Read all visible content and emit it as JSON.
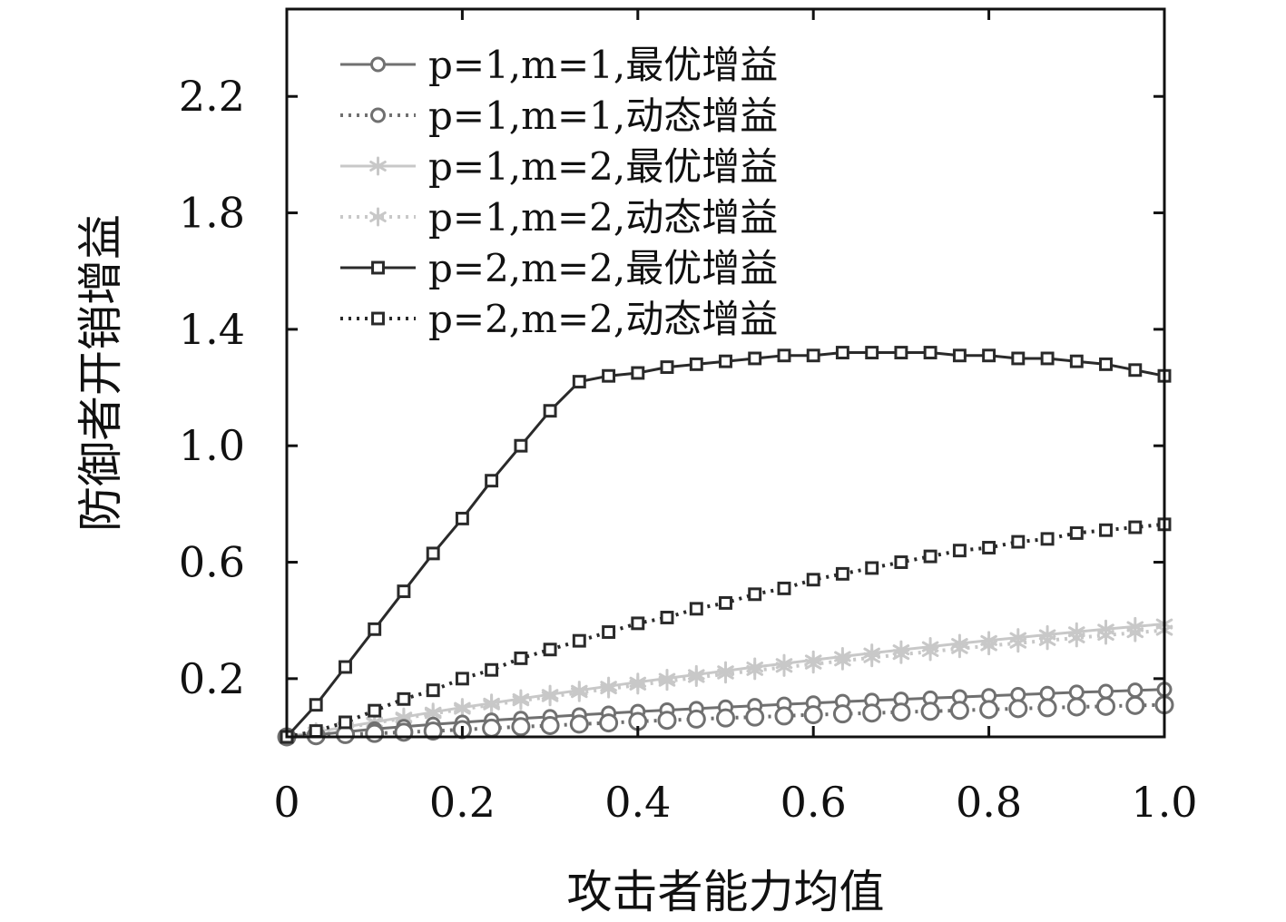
{
  "chart_data": {
    "type": "line",
    "title": "",
    "xlabel": "攻击者能力均值",
    "ylabel": "防御者开销增益",
    "xlim": [
      0,
      1.0
    ],
    "ylim": [
      0,
      2.5
    ],
    "xticks": [
      "0",
      "0.2",
      "0.4",
      "0.6",
      "0.8",
      "1.0"
    ],
    "yticks": [
      "0.2",
      "0.6",
      "1.0",
      "1.4",
      "1.8",
      "2.2"
    ],
    "grid": false,
    "legend_position": "top-left",
    "x": [
      0,
      0.0333,
      0.0667,
      0.1,
      0.1333,
      0.1667,
      0.2,
      0.2333,
      0.2667,
      0.3,
      0.3333,
      0.3667,
      0.4,
      0.4333,
      0.4667,
      0.5,
      0.5333,
      0.5667,
      0.6,
      0.6333,
      0.6667,
      0.7,
      0.7333,
      0.7667,
      0.8,
      0.8333,
      0.8667,
      0.9,
      0.9333,
      0.9667,
      1.0
    ],
    "series": [
      {
        "name": "p=1,m=1,最优增益",
        "color": "#707070",
        "line": "solid",
        "marker": "circle",
        "values": [
          0.0,
          0.007,
          0.017,
          0.027,
          0.035,
          0.043,
          0.05,
          0.057,
          0.063,
          0.069,
          0.075,
          0.081,
          0.087,
          0.092,
          0.097,
          0.102,
          0.107,
          0.112,
          0.116,
          0.121,
          0.125,
          0.129,
          0.133,
          0.137,
          0.141,
          0.145,
          0.149,
          0.153,
          0.156,
          0.16,
          0.163
        ]
      },
      {
        "name": "p=1,m=1,动态增益",
        "color": "#707070",
        "line": "dotted",
        "marker": "circle",
        "values": [
          0.0,
          0.004,
          0.008,
          0.012,
          0.016,
          0.02,
          0.025,
          0.03,
          0.035,
          0.039,
          0.044,
          0.048,
          0.053,
          0.057,
          0.061,
          0.065,
          0.068,
          0.072,
          0.076,
          0.079,
          0.082,
          0.085,
          0.088,
          0.091,
          0.094,
          0.097,
          0.1,
          0.103,
          0.105,
          0.108,
          0.11
        ]
      },
      {
        "name": "p=1,m=2,最优增益",
        "color": "#c8c8c8",
        "line": "solid",
        "marker": "star",
        "values": [
          0.0,
          0.017,
          0.034,
          0.051,
          0.068,
          0.085,
          0.101,
          0.116,
          0.131,
          0.146,
          0.16,
          0.174,
          0.188,
          0.201,
          0.214,
          0.227,
          0.24,
          0.252,
          0.264,
          0.276,
          0.288,
          0.299,
          0.31,
          0.321,
          0.331,
          0.341,
          0.351,
          0.361,
          0.37,
          0.379,
          0.388
        ]
      },
      {
        "name": "p=1,m=2,动态增益",
        "color": "#c8c8c8",
        "line": "dotted",
        "marker": "star",
        "values": [
          0.0,
          0.016,
          0.032,
          0.048,
          0.064,
          0.08,
          0.095,
          0.11,
          0.124,
          0.138,
          0.152,
          0.165,
          0.178,
          0.191,
          0.204,
          0.216,
          0.228,
          0.239,
          0.25,
          0.261,
          0.272,
          0.283,
          0.293,
          0.303,
          0.313,
          0.322,
          0.331,
          0.34,
          0.349,
          0.358,
          0.366
        ]
      },
      {
        "name": "p=2,m=2,最优增益",
        "color": "#2a2a2a",
        "line": "solid",
        "marker": "square",
        "values": [
          0.0,
          0.11,
          0.24,
          0.37,
          0.5,
          0.63,
          0.75,
          0.88,
          1.0,
          1.12,
          1.22,
          1.24,
          1.25,
          1.27,
          1.28,
          1.29,
          1.3,
          1.31,
          1.31,
          1.32,
          1.32,
          1.32,
          1.32,
          1.31,
          1.31,
          1.3,
          1.3,
          1.29,
          1.28,
          1.26,
          1.24
        ]
      },
      {
        "name": "p=2,m=2,动态增益",
        "color": "#2a2a2a",
        "line": "dotted",
        "marker": "square",
        "values": [
          0.0,
          0.02,
          0.05,
          0.09,
          0.13,
          0.16,
          0.2,
          0.23,
          0.27,
          0.3,
          0.33,
          0.36,
          0.39,
          0.41,
          0.44,
          0.46,
          0.49,
          0.51,
          0.54,
          0.56,
          0.58,
          0.6,
          0.62,
          0.64,
          0.65,
          0.67,
          0.68,
          0.7,
          0.71,
          0.72,
          0.73
        ]
      }
    ]
  }
}
